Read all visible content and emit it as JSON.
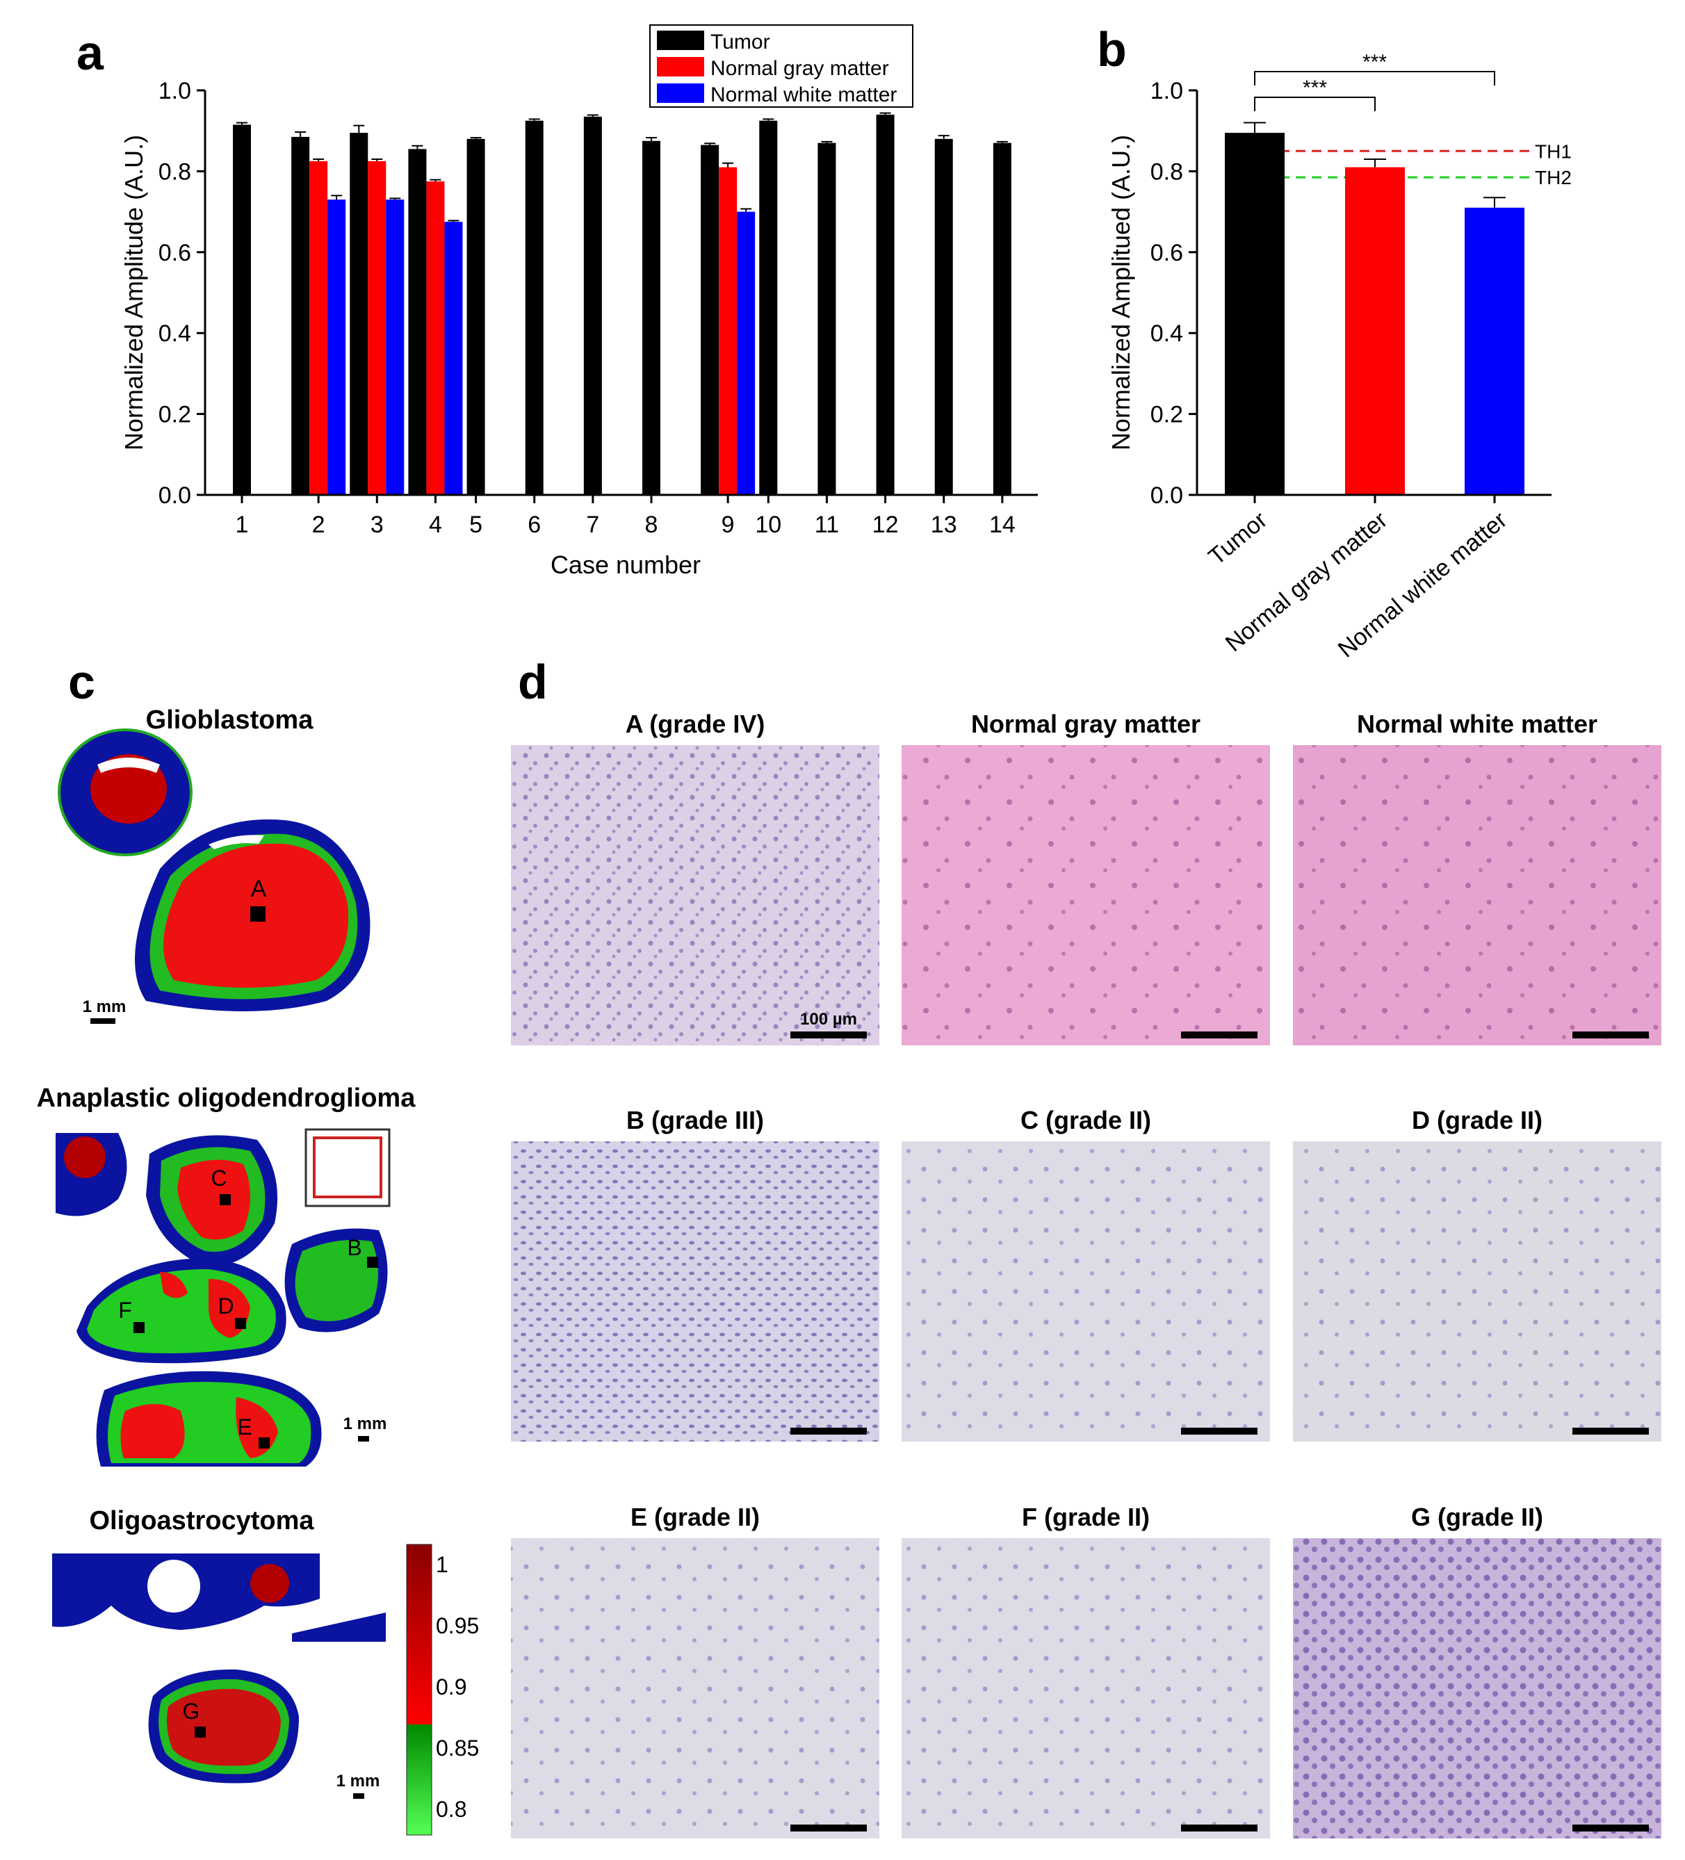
{
  "panels": {
    "a": "a",
    "b": "b",
    "c": "c",
    "d": "d"
  },
  "colors": {
    "tumor": "#000000",
    "gray": "#ff0000",
    "white": "#0000ff",
    "th1": "#e02020",
    "th2": "#22cc22"
  },
  "chart_data": [
    {
      "type": "bar",
      "panel": "a",
      "xlabel": "Case number",
      "ylabel": "Normalized Amplitude (A.U.)",
      "ylim": [
        0,
        1.0
      ],
      "yticks": [
        "0.0",
        "0.2",
        "0.4",
        "0.6",
        "0.8",
        "1.0"
      ],
      "categories": [
        "1",
        "2",
        "3",
        "4",
        "5",
        "6",
        "7",
        "8",
        "9",
        "10",
        "11",
        "12",
        "13",
        "14"
      ],
      "legend_position": "top-right",
      "series": [
        {
          "name": "Tumor",
          "color": "#000000",
          "values": [
            0.915,
            0.885,
            0.895,
            0.855,
            0.88,
            0.925,
            0.935,
            0.875,
            0.865,
            0.925,
            0.87,
            0.94,
            0.88,
            0.87
          ],
          "errors": [
            0.005,
            0.012,
            0.018,
            0.008,
            0.003,
            0.004,
            0.004,
            0.008,
            0.004,
            0.004,
            0.003,
            0.004,
            0.008,
            0.003
          ]
        },
        {
          "name": "Normal gray matter",
          "color": "#ff0000",
          "values": [
            null,
            0.825,
            0.825,
            0.775,
            null,
            null,
            null,
            null,
            0.81,
            null,
            null,
            null,
            null,
            null
          ],
          "errors": [
            null,
            0.005,
            0.005,
            0.004,
            null,
            null,
            null,
            null,
            0.01,
            null,
            null,
            null,
            null,
            null
          ]
        },
        {
          "name": "Normal white matter",
          "color": "#0000ff",
          "values": [
            null,
            0.73,
            0.73,
            0.675,
            null,
            null,
            null,
            null,
            0.7,
            null,
            null,
            null,
            null,
            null
          ],
          "errors": [
            null,
            0.01,
            0.003,
            0.003,
            null,
            null,
            null,
            null,
            0.007,
            null,
            null,
            null,
            null,
            null
          ]
        }
      ]
    },
    {
      "type": "bar",
      "panel": "b",
      "ylabel": "Normalized Amplitued (A.U.)",
      "ylim": [
        0,
        1.0
      ],
      "yticks": [
        "0.0",
        "0.2",
        "0.4",
        "0.6",
        "0.8",
        "1.0"
      ],
      "categories": [
        "Tumor",
        "Normal gray matter",
        "Normal white matter"
      ],
      "values": [
        0.895,
        0.81,
        0.71
      ],
      "errors": [
        0.025,
        0.02,
        0.025
      ],
      "bar_colors": [
        "#000000",
        "#ff0000",
        "#0000ff"
      ],
      "thresholds": [
        {
          "label": "TH1",
          "value": 0.85,
          "color": "#e02020"
        },
        {
          "label": "TH2",
          "value": 0.785,
          "color": "#22cc22"
        }
      ],
      "significance": [
        {
          "from": 0,
          "to": 1,
          "label": "***"
        },
        {
          "from": 0,
          "to": 2,
          "label": "***"
        }
      ]
    }
  ],
  "panel_c": {
    "maps": [
      {
        "title": "Glioblastoma",
        "scale": "1 mm",
        "regions": [
          "A"
        ]
      },
      {
        "title": "Anaplastic oligodendroglioma",
        "scale": "1 mm",
        "regions": [
          "B",
          "C",
          "D",
          "E",
          "F"
        ]
      },
      {
        "title": "Oligoastrocytoma",
        "scale": "1 mm",
        "regions": [
          "G"
        ]
      }
    ],
    "colorbar": {
      "ticks": [
        "1",
        "0.95",
        "0.9",
        "0.85",
        "0.8"
      ],
      "colors": [
        "#8b0000",
        "#ff0000",
        "#00cc00",
        "#66ff66"
      ]
    }
  },
  "panel_d": {
    "scalebar": "100 µm",
    "images": [
      {
        "caption": "A (grade IV)",
        "tone": "#ddd0e6"
      },
      {
        "caption": "Normal gray matter",
        "tone": "#eaaad3"
      },
      {
        "caption": "Normal white matter",
        "tone": "#e6a3cf"
      },
      {
        "caption": "B (grade III)",
        "tone": "#d6d3e8"
      },
      {
        "caption": "C (grade II)",
        "tone": "#dcdbe6"
      },
      {
        "caption": "D (grade II)",
        "tone": "#dcdbe3"
      },
      {
        "caption": "E (grade II)",
        "tone": "#dcdbe6"
      },
      {
        "caption": "F (grade II)",
        "tone": "#dcdbe6"
      },
      {
        "caption": "G (grade II)",
        "tone": "#c9b4dc"
      }
    ]
  }
}
